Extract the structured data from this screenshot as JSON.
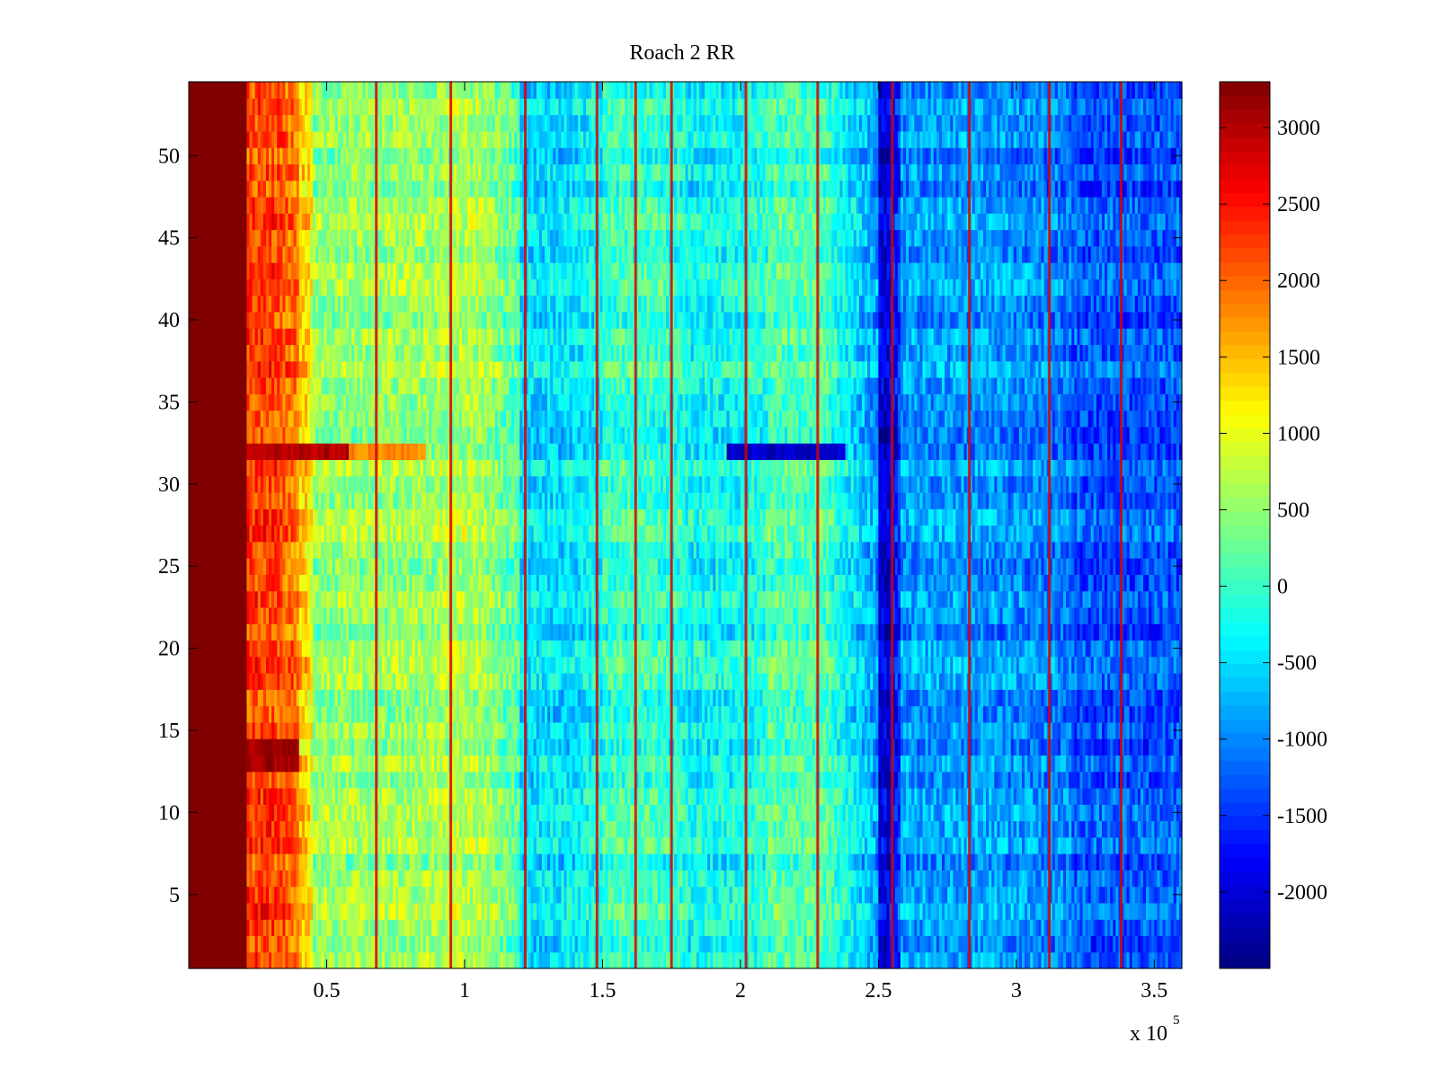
{
  "chart_data": {
    "type": "heatmap",
    "title": "Roach 2 RR",
    "xlabel": "",
    "ylabel": "",
    "x_multiplier": "x 10",
    "x_multiplier_exponent": "5",
    "xlim": [
      0,
      3.6
    ],
    "ylim": [
      0.5,
      54.5
    ],
    "x_ticks": [
      0.5,
      1,
      1.5,
      2,
      2.5,
      3,
      3.5
    ],
    "x_tick_labels": [
      "0.5",
      "1",
      "1.5",
      "2",
      "2.5",
      "3",
      "3.5"
    ],
    "y_ticks": [
      5,
      10,
      15,
      20,
      25,
      30,
      35,
      40,
      45,
      50
    ],
    "y_tick_labels": [
      "5",
      "10",
      "15",
      "20",
      "25",
      "30",
      "35",
      "40",
      "45",
      "50"
    ],
    "rows": 54,
    "colormap": "jet",
    "clim": [
      -2500,
      3300
    ],
    "colorbar_ticks": [
      -2000,
      -1500,
      -1000,
      -500,
      0,
      500,
      1000,
      1500,
      2000,
      2500,
      3000
    ],
    "colorbar_tick_labels": [
      "-2000",
      "-1500",
      "-1000",
      "-500",
      "0",
      "500",
      "1000",
      "1500",
      "2000",
      "2500",
      "3000"
    ],
    "column_profile": [
      {
        "x_from": 0.0,
        "x_to": 0.21,
        "value": 3300
      },
      {
        "x_from": 0.21,
        "x_to": 0.4,
        "value": 2200
      },
      {
        "x_from": 0.4,
        "x_to": 0.45,
        "value": 1400
      },
      {
        "x_from": 0.45,
        "x_to": 0.9,
        "value": 500
      },
      {
        "x_from": 0.9,
        "x_to": 1.2,
        "value": 650
      },
      {
        "x_from": 1.2,
        "x_to": 1.5,
        "value": -500
      },
      {
        "x_from": 1.5,
        "x_to": 1.8,
        "value": 0
      },
      {
        "x_from": 1.8,
        "x_to": 2.1,
        "value": -300
      },
      {
        "x_from": 2.1,
        "x_to": 2.5,
        "value": 100
      },
      {
        "x_from": 2.5,
        "x_to": 2.58,
        "value": -2000
      },
      {
        "x_from": 2.58,
        "x_to": 3.2,
        "value": -900
      },
      {
        "x_from": 3.2,
        "x_to": 3.6,
        "value": -1300
      }
    ],
    "vertical_lines_x": [
      0.68,
      0.95,
      1.22,
      1.48,
      1.62,
      1.75,
      2.02,
      2.28,
      2.55,
      2.83,
      3.12,
      3.38
    ],
    "vertical_line_value": 2800,
    "anomalous_rows": [
      {
        "row": 32,
        "note": "hot band",
        "segments": [
          {
            "x_from": 0.21,
            "x_to": 0.58,
            "value": 3000
          },
          {
            "x_from": 0.58,
            "x_to": 0.86,
            "value": 1800
          },
          {
            "x_from": 1.95,
            "x_to": 2.38,
            "value": -2100
          }
        ]
      },
      {
        "row": 13,
        "segments": [
          {
            "x_from": 0.21,
            "x_to": 0.4,
            "value": 3100
          }
        ]
      },
      {
        "row": 14,
        "segments": [
          {
            "x_from": 0.21,
            "x_to": 0.4,
            "value": 3100
          }
        ]
      }
    ]
  }
}
